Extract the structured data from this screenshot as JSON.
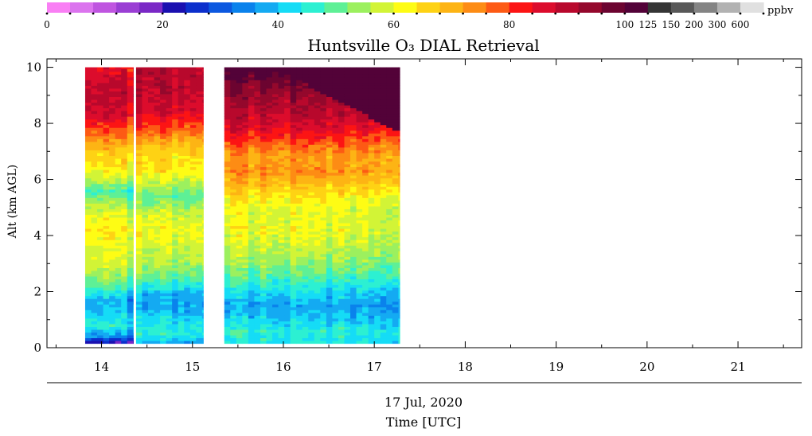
{
  "chart_data": {
    "type": "heatmap",
    "title": "Huntsville O₃ DIAL Retrieval",
    "xlabel": "Time [UTC]",
    "date_label": "17 Jul, 2020",
    "ylabel": "Alt (km AGL)",
    "xlim": [
      13.4,
      21.7
    ],
    "ylim": [
      0,
      10.3
    ],
    "x_ticks": [
      14,
      15,
      16,
      17,
      18,
      19,
      20,
      21
    ],
    "y_ticks": [
      0,
      2,
      4,
      6,
      8,
      10
    ],
    "grid": false,
    "colorbar": {
      "unit": "ppbv",
      "tick_labels": [
        "0",
        "20",
        "40",
        "60",
        "80",
        "100",
        "125",
        "150",
        "200",
        "300",
        "600"
      ],
      "colors": [
        "#f97ff4",
        "#db74ee",
        "#bf55e0",
        "#9a3ed4",
        "#7a28c6",
        "#1a0fb0",
        "#0c2fcc",
        "#0c58e0",
        "#0a82ec",
        "#14aaf2",
        "#15dcf6",
        "#2cf0d2",
        "#5ef096",
        "#9cf05e",
        "#d2f436",
        "#fefc14",
        "#fed214",
        "#fdb414",
        "#fd8c14",
        "#fd5a14",
        "#fc1414",
        "#dc0c2c",
        "#b8082c",
        "#94082c",
        "#6c0430",
        "#530238",
        "#353535",
        "#585858",
        "#848484",
        "#b2b2b2",
        "#e0e0e0"
      ]
    },
    "series": [
      {
        "name": "",
        "x_start": 13.82,
        "x_end": 14.35,
        "y_min": 0.15,
        "y_max": 10.0,
        "profile_ppbv": [
          [
            0.15,
            18
          ],
          [
            0.4,
            34
          ],
          [
            0.8,
            44
          ],
          [
            1.2,
            40
          ],
          [
            1.7,
            37
          ],
          [
            2.1,
            46
          ],
          [
            2.5,
            52
          ],
          [
            3.0,
            57
          ],
          [
            3.6,
            59
          ],
          [
            4.2,
            62
          ],
          [
            4.8,
            58
          ],
          [
            5.3,
            52
          ],
          [
            5.6,
            46
          ],
          [
            6.0,
            57
          ],
          [
            6.5,
            63
          ],
          [
            7.0,
            66
          ],
          [
            7.4,
            72
          ],
          [
            7.8,
            78
          ],
          [
            8.3,
            86
          ],
          [
            9.0,
            88
          ],
          [
            9.6,
            86
          ],
          [
            10.0,
            83
          ]
        ]
      },
      {
        "name": "",
        "x_start": 14.38,
        "x_end": 15.12,
        "y_min": 0.15,
        "y_max": 10.0,
        "profile_ppbv": [
          [
            0.15,
            38
          ],
          [
            0.5,
            44
          ],
          [
            1.0,
            42
          ],
          [
            1.4,
            37
          ],
          [
            1.9,
            38
          ],
          [
            2.4,
            48
          ],
          [
            3.0,
            55
          ],
          [
            3.6,
            58
          ],
          [
            4.2,
            61
          ],
          [
            4.8,
            57
          ],
          [
            5.4,
            50
          ],
          [
            5.8,
            55
          ],
          [
            6.3,
            63
          ],
          [
            6.8,
            64
          ],
          [
            7.3,
            70
          ],
          [
            7.8,
            78
          ],
          [
            8.4,
            86
          ],
          [
            9.2,
            89
          ],
          [
            10.0,
            90
          ]
        ]
      },
      {
        "name": "",
        "x_start": 15.35,
        "x_end": 17.28,
        "y_min": 0.15,
        "y_max": 10.0,
        "profile_ppbv": [
          [
            0.15,
            43
          ],
          [
            0.6,
            45
          ],
          [
            1.1,
            40
          ],
          [
            1.5,
            37
          ],
          [
            2.0,
            42
          ],
          [
            2.5,
            48
          ],
          [
            3.0,
            53
          ],
          [
            3.6,
            57
          ],
          [
            4.2,
            60
          ],
          [
            4.8,
            59
          ],
          [
            5.3,
            62
          ],
          [
            5.8,
            68
          ],
          [
            6.3,
            73
          ],
          [
            6.8,
            72
          ],
          [
            7.3,
            78
          ],
          [
            7.8,
            85
          ],
          [
            8.3,
            89
          ],
          [
            8.8,
            92
          ],
          [
            9.4,
            96
          ],
          [
            10.0,
            105
          ]
        ]
      }
    ]
  }
}
